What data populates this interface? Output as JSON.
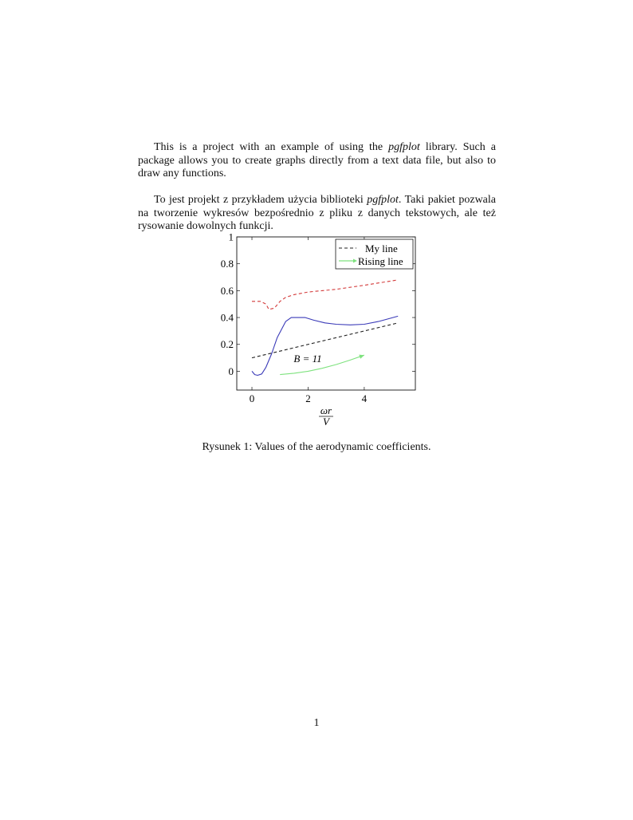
{
  "paragraphs": [
    {
      "before": "This is a project with an example of using the ",
      "emph": "pgfplot",
      "after": " library. Such a package allows you to create graphs directly from a text data file, but also to draw any functions."
    },
    {
      "before": "To jest projekt z przykładem użycia biblioteki ",
      "emph": "pgfplot",
      "after": ". Taki pakiet pozwala na tworzenie wykresów bezpośrednio z pliku z danych tekstowych, ale też rysowanie dowolnych funkcji."
    }
  ],
  "chart_data": {
    "type": "line",
    "title": "",
    "xlabel_num": "ωr",
    "xlabel_den": "V",
    "ylabel": "",
    "xlim": [
      -0.54,
      5.82
    ],
    "ylim": [
      -0.14,
      1.0
    ],
    "xticks": [
      0,
      2,
      4
    ],
    "yticks": [
      0,
      0.2,
      0.4,
      0.6,
      0.8,
      1
    ],
    "grid": false,
    "legend_position": "top-right",
    "annotation": {
      "text": "B = 11",
      "x": 1.6,
      "y": 0.09
    },
    "series": [
      {
        "name": "",
        "color": "#d33a3a",
        "style": "dashed",
        "x": [
          0,
          0.3,
          0.5,
          0.6,
          0.8,
          1.0,
          1.2,
          1.5,
          2.0,
          3.0,
          4.0,
          5.2
        ],
        "y": [
          0.52,
          0.52,
          0.5,
          0.46,
          0.47,
          0.52,
          0.55,
          0.57,
          0.59,
          0.61,
          0.64,
          0.68
        ]
      },
      {
        "name": "",
        "color": "#3a3ab8",
        "style": "solid",
        "x": [
          0,
          0.1,
          0.2,
          0.35,
          0.5,
          0.7,
          0.9,
          1.2,
          1.4,
          1.9,
          2.2,
          2.6,
          3.0,
          3.5,
          4.0,
          4.5,
          5.2
        ],
        "y": [
          0,
          -0.025,
          -0.03,
          -0.02,
          0.03,
          0.13,
          0.25,
          0.37,
          0.4,
          0.4,
          0.38,
          0.36,
          0.35,
          0.345,
          0.35,
          0.37,
          0.41
        ]
      },
      {
        "name": "My line",
        "color": "#222222",
        "style": "dashed",
        "x": [
          0,
          5.2
        ],
        "y": [
          0.1,
          0.36
        ]
      },
      {
        "name": "Rising line",
        "color": "#7ee27e",
        "style": "solid-arrow",
        "x": [
          1,
          1.5,
          2,
          2.5,
          3,
          3.5,
          4
        ],
        "y": [
          -0.025,
          -0.015,
          0.0,
          0.022,
          0.05,
          0.083,
          0.12
        ]
      }
    ]
  },
  "caption": "Rysunek 1: Values of the aerodynamic coefficients.",
  "page_number": "1"
}
